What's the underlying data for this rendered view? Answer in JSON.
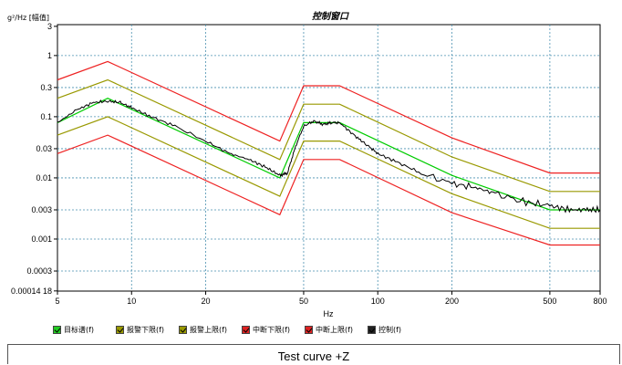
{
  "chart_data": {
    "type": "line",
    "title": "控制窗口",
    "xlabel": "Hz",
    "ylabel": "g²/Hz [幅值]",
    "x_scale": "log",
    "y_scale": "log",
    "xlim": [
      5,
      800
    ],
    "ylim": [
      0.000141,
      3.2
    ],
    "grid": true,
    "x_ticks": [
      "5",
      "10",
      "20",
      "50",
      "100",
      "200",
      "500",
      "800"
    ],
    "x_tick_values": [
      5,
      10,
      20,
      50,
      100,
      200,
      500,
      800
    ],
    "y_ticks": [
      "3",
      "1",
      "0.3",
      "0.1",
      "0.03",
      "0.01",
      "0.003",
      "0.001",
      "0.0003",
      "0.00014 18"
    ],
    "y_tick_values": [
      3,
      1,
      0.3,
      0.1,
      0.03,
      0.01,
      0.003,
      0.001,
      0.0003,
      0.0001418
    ],
    "series": [
      {
        "name": "目标谱(f)",
        "color": "#00cc00",
        "x": [
          5,
          8,
          40,
          50,
          70,
          200,
          500,
          800
        ],
        "y": [
          0.08,
          0.2,
          0.01,
          0.08,
          0.08,
          0.011,
          0.003,
          0.003
        ]
      },
      {
        "name": "报警下限(f)",
        "color": "#999900",
        "x": [
          5,
          8,
          40,
          50,
          70,
          200,
          500,
          800
        ],
        "y": [
          0.05,
          0.1,
          0.005,
          0.04,
          0.04,
          0.0055,
          0.0015,
          0.0015
        ]
      },
      {
        "name": "报警上限(f)",
        "color": "#999900",
        "x": [
          5,
          8,
          40,
          50,
          70,
          200,
          500,
          800
        ],
        "y": [
          0.2,
          0.4,
          0.02,
          0.16,
          0.16,
          0.022,
          0.006,
          0.006
        ]
      },
      {
        "name": "中断下限(f)",
        "color": "#ee2222",
        "x": [
          5,
          8,
          40,
          50,
          70,
          200,
          500,
          800
        ],
        "y": [
          0.025,
          0.05,
          0.0025,
          0.02,
          0.02,
          0.0027,
          0.0008,
          0.0008
        ]
      },
      {
        "name": "中断上限(f)",
        "color": "#ee2222",
        "x": [
          5,
          8,
          40,
          50,
          70,
          200,
          500,
          800
        ],
        "y": [
          0.4,
          0.8,
          0.04,
          0.32,
          0.32,
          0.045,
          0.012,
          0.012
        ]
      },
      {
        "name": "控制(f)",
        "color": "#000000",
        "x": [
          5,
          6,
          7,
          8,
          9,
          10,
          12,
          15,
          20,
          25,
          30,
          35,
          40,
          43,
          46,
          50,
          55,
          60,
          65,
          70,
          80,
          90,
          100,
          120,
          150,
          200,
          250,
          300,
          400,
          500,
          600,
          700,
          800
        ],
        "y": [
          0.08,
          0.13,
          0.17,
          0.18,
          0.17,
          0.14,
          0.1,
          0.07,
          0.04,
          0.025,
          0.02,
          0.015,
          0.011,
          0.012,
          0.03,
          0.07,
          0.085,
          0.075,
          0.08,
          0.08,
          0.05,
          0.035,
          0.025,
          0.018,
          0.012,
          0.008,
          0.007,
          0.0055,
          0.004,
          0.0035,
          0.003,
          0.003,
          0.003
        ]
      }
    ]
  },
  "legend": [
    {
      "label": "目标谱(f)",
      "color": "#22cc22"
    },
    {
      "label": "报警下限(f)",
      "color": "#999900"
    },
    {
      "label": "报警上限(f)",
      "color": "#999900"
    },
    {
      "label": "中断下限(f)",
      "color": "#dd2222"
    },
    {
      "label": "中断上限(f)",
      "color": "#dd2222"
    },
    {
      "label": "控制(f)",
      "color": "#222222"
    }
  ],
  "caption": "Test curve +Z"
}
